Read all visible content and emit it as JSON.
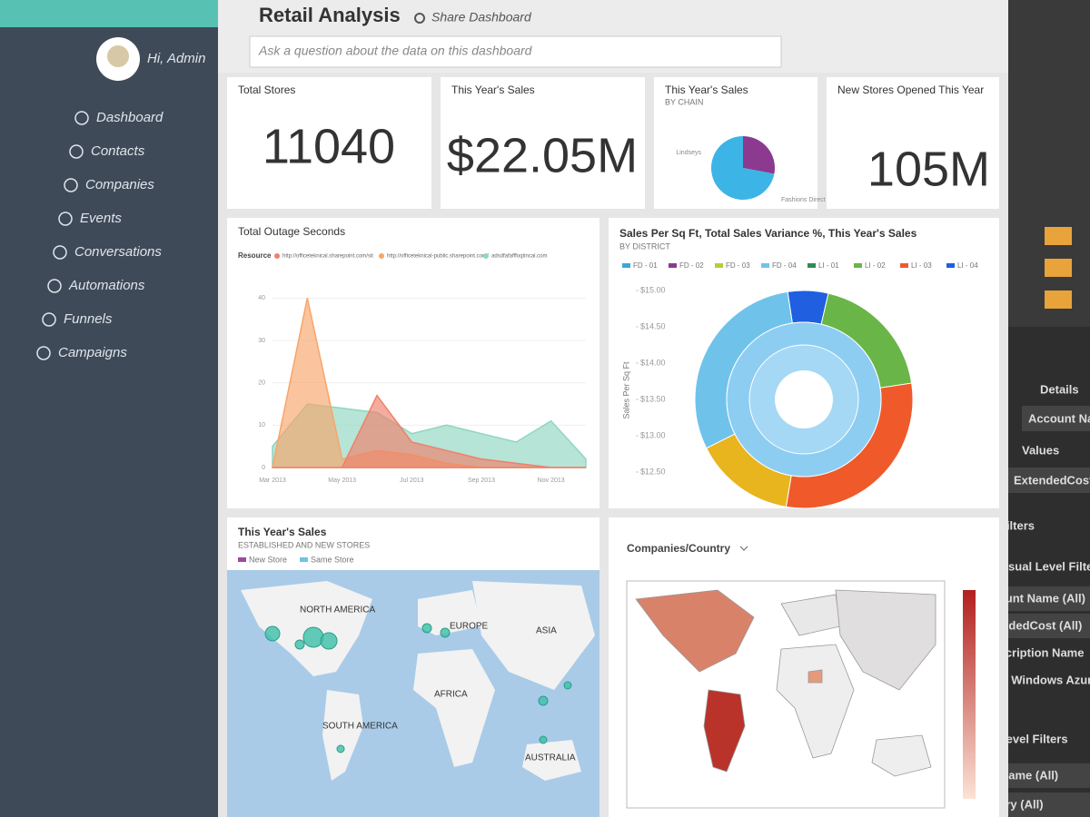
{
  "sidebar": {
    "user": "Hi, Admin",
    "nav": [
      "Dashboard",
      "Contacts",
      "Companies",
      "Events",
      "Conversations",
      "Automations",
      "Funnels",
      "Campaigns"
    ]
  },
  "header": {
    "title": "Retail Analysis",
    "share": "Share Dashboard",
    "question_placeholder": "Ask a question about the data on this dashboard"
  },
  "tiles": [
    {
      "title": "Total Stores",
      "value": "11040"
    },
    {
      "title": "This Year's Sales",
      "value": "$22.05M"
    },
    {
      "title": "New Stores Opened This Year",
      "value": "105M"
    }
  ],
  "pie": {
    "title": "This Year's Sales",
    "subtitle": "BY CHAIN",
    "categories": [
      "Lindseys",
      "Fashions Direct"
    ],
    "values": [
      28,
      72
    ],
    "colors": [
      "#8b3a8f",
      "#3cb4e6"
    ]
  },
  "area_chart": {
    "title": "Total Outage Seconds",
    "legend_title": "Resource",
    "categories": [
      "Mar 2013",
      null,
      "May 2013",
      null,
      "Jul 2013",
      null,
      "Sep 2013",
      null,
      "Nov 2013",
      null
    ],
    "series": [
      {
        "name": "http://officeteknical.sharepoint.com/sit",
        "color": "#f0806a",
        "values": [
          0,
          0,
          0,
          17,
          6,
          4,
          2,
          1,
          0,
          0
        ]
      },
      {
        "name": "http://officeteknical-public.sharepoint.com/",
        "color": "#f7a56a",
        "values": [
          0,
          40,
          2,
          4,
          3,
          1,
          0,
          0,
          0,
          0
        ]
      },
      {
        "name": "adsdfafafffoqtincal.com",
        "color": "#8fd6c0",
        "values": [
          5,
          15,
          14,
          13,
          8,
          10,
          8,
          6,
          11,
          2
        ]
      }
    ],
    "ylim": [
      0,
      45
    ],
    "yticks": [
      0,
      10,
      20,
      30,
      40
    ]
  },
  "sunburst": {
    "title": "Sales Per Sq Ft, Total Sales Variance %, This Year's Sales",
    "subtitle": "BY DISTRICT",
    "legend": [
      {
        "name": "FD - 01",
        "color": "#3aa9d8"
      },
      {
        "name": "FD - 02",
        "color": "#8b3a8f"
      },
      {
        "name": "FD - 03",
        "color": "#b8cc3a"
      },
      {
        "name": "FD - 04",
        "color": "#6fc3ea"
      },
      {
        "name": "LI - 01",
        "color": "#2e8b57"
      },
      {
        "name": "LI - 02",
        "color": "#6ab547"
      },
      {
        "name": "LI - 03",
        "color": "#f0592a"
      },
      {
        "name": "LI - 04",
        "color": "#1f5fe0"
      }
    ],
    "axis_title": "Sales Per Sq Ft",
    "yticks": [
      {
        "value": 15,
        "label": "$15.00"
      },
      {
        "value": 14.5,
        "label": "$14.50"
      },
      {
        "value": 14,
        "label": "$14.00"
      },
      {
        "value": 13.5,
        "label": "$13.50"
      },
      {
        "value": 13,
        "label": "$13.00"
      },
      {
        "value": 12.5,
        "label": "$12.50"
      }
    ],
    "ylim": [
      12.5,
      15
    ],
    "segments": [
      {
        "color": "#1f5fe0",
        "value": 6
      },
      {
        "color": "#6ab547",
        "value": 19
      },
      {
        "color": "#f0592a",
        "value": 30
      },
      {
        "color": "#e8b51e",
        "value": 15
      },
      {
        "color": "#6fc3ea",
        "value": 30
      }
    ]
  },
  "store_map": {
    "title": "This Year's Sales",
    "subtitle": "ESTABLISHED AND NEW STORES",
    "legend": [
      {
        "name": "New Store",
        "color": "#9b4a9e"
      },
      {
        "name": "Same Store",
        "color": "#6fc3ea"
      }
    ],
    "labels": [
      "NORTH AMERICA",
      "EUROPE",
      "ASIA",
      "AFRICA",
      "SOUTH AMERICA",
      "AUSTRALIA"
    ]
  },
  "country_map": {
    "field": "Companies/Country"
  },
  "pane": {
    "details": "Details",
    "account": "Account Name",
    "values": "Values",
    "extended_cost": "ExtendedCost",
    "filters": "Filters",
    "visual_filters": "Visual Level Filters",
    "filter_items": [
      "Account Name (All)",
      "ExtendedCost (All)",
      "Subscription Name",
      "is not Windows Azure E"
    ],
    "page_filters": "Page Level Filters",
    "page_items": [
      "Department Name (All)",
      "Meter Category (All)"
    ]
  }
}
